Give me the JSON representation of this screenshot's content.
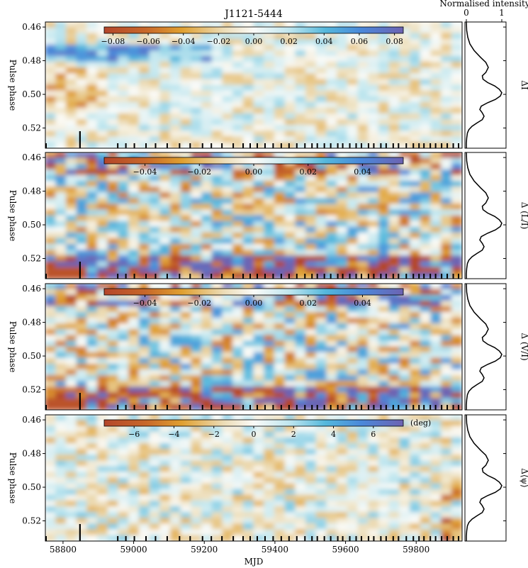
{
  "chart_data": {
    "type": "heatmap",
    "title": "J1121-5444",
    "xlabel": "MJD",
    "xlim": [
      58750,
      59930
    ],
    "x_ticks": [
      58800,
      59000,
      59200,
      59400,
      59600,
      59800
    ],
    "y_ticks": [
      0.46,
      0.48,
      0.5,
      0.52
    ],
    "ylim": [
      0.532,
      0.457
    ],
    "ylabel": "Pulse phase",
    "observation_epochs": [
      58752,
      58848,
      58955,
      58978,
      59002,
      59035,
      59062,
      59095,
      59130,
      59160,
      59195,
      59220,
      59250,
      59282,
      59310,
      59330,
      59350,
      59372,
      59395,
      59418,
      59440,
      59462,
      59485,
      59505,
      59520,
      59540,
      59558,
      59578,
      59592,
      59612,
      59630,
      59645,
      59665,
      59680,
      59700,
      59715,
      59735,
      59750,
      59772,
      59792,
      59808,
      59822,
      59840,
      59855,
      59872,
      59888,
      59905,
      59920
    ],
    "panels": [
      {
        "name": "delta-I",
        "side_label": "ΔI",
        "colorbar_ticks": [
          "−0.08",
          "−0.06",
          "−0.04",
          "−0.02",
          "0.00",
          "0.02",
          "0.04",
          "0.06",
          "0.08"
        ],
        "colorbar_range": [
          -0.085,
          0.085
        ],
        "colorbar_unit": ""
      },
      {
        "name": "delta-L-over-I",
        "side_label": "Δ (L/I)",
        "colorbar_ticks": [
          "−0.04",
          "−0.02",
          "0.00",
          "0.02",
          "0.04"
        ],
        "colorbar_range": [
          -0.055,
          0.055
        ],
        "colorbar_unit": ""
      },
      {
        "name": "delta-V-over-I",
        "side_label": "Δ (V/I)",
        "colorbar_ticks": [
          "−0.04",
          "−0.02",
          "0.00",
          "0.02",
          "0.04"
        ],
        "colorbar_range": [
          -0.055,
          0.055
        ],
        "colorbar_unit": ""
      },
      {
        "name": "delta-psi",
        "side_label": "Δ⟨ψ⟩",
        "colorbar_ticks": [
          "−6",
          "−4",
          "−2",
          "0",
          "2",
          "4",
          "6"
        ],
        "colorbar_range": [
          -7.5,
          7.5
        ],
        "colorbar_unit": "(deg)"
      }
    ],
    "profile": {
      "title": "Normalised intensity",
      "x_ticks": [
        "0",
        "1"
      ],
      "phase": [
        0.457,
        0.462,
        0.466,
        0.47,
        0.474,
        0.478,
        0.481,
        0.484,
        0.487,
        0.489,
        0.491,
        0.493,
        0.495,
        0.497,
        0.499,
        0.501,
        0.503,
        0.505,
        0.507,
        0.509,
        0.511,
        0.513,
        0.515,
        0.517,
        0.519,
        0.521,
        0.523,
        0.526,
        0.529,
        0.532
      ],
      "intensity": [
        0.0,
        0.01,
        0.04,
        0.1,
        0.22,
        0.4,
        0.55,
        0.62,
        0.55,
        0.45,
        0.47,
        0.6,
        0.8,
        0.93,
        1.0,
        0.96,
        0.82,
        0.6,
        0.42,
        0.38,
        0.45,
        0.5,
        0.45,
        0.3,
        0.16,
        0.07,
        0.03,
        0.01,
        0.0,
        0.0
      ]
    }
  }
}
